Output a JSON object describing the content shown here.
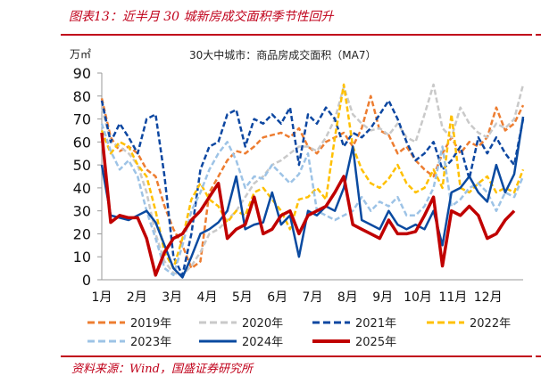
{
  "header": {
    "title": "图表13：近半月 30 城新房成交面积季节性回升"
  },
  "footer": {
    "source": "资料来源：Wind，国盛证券研究所"
  },
  "chart_data": {
    "type": "line",
    "title": "30大中城市：商品房成交面积（MA7）",
    "ylabel": "万㎡",
    "xlabel": "",
    "ylim": [
      0,
      90
    ],
    "yticks": [
      0,
      10,
      20,
      30,
      40,
      50,
      60,
      70,
      80,
      90
    ],
    "categories": [
      "1月",
      "2月",
      "3月",
      "4月",
      "5月",
      "6月",
      "7月",
      "8月",
      "9月",
      "10月",
      "11月",
      "12月"
    ],
    "grid": false,
    "legend_position": "bottom",
    "x_note": "values sampled at ~48 evenly spaced points across the year (≈ weekly)",
    "series": [
      {
        "name": "2019年",
        "color": "#ED7D31",
        "style": "dashed",
        "width": 2.5,
        "values": [
          79,
          62,
          56,
          58,
          55,
          48,
          45,
          32,
          22,
          15,
          5,
          8,
          38,
          45,
          52,
          56,
          55,
          58,
          62,
          63,
          64,
          62,
          66,
          58,
          55,
          60,
          62,
          64,
          58,
          66,
          80,
          65,
          63,
          55,
          58,
          52,
          48,
          45,
          55,
          62,
          55,
          60,
          58,
          62,
          75,
          65,
          68,
          76
        ]
      },
      {
        "name": "2020年",
        "color": "#C9C9C9",
        "style": "dashed",
        "width": 2.5,
        "values": [
          75,
          60,
          58,
          55,
          50,
          38,
          20,
          8,
          3,
          2,
          6,
          12,
          20,
          22,
          26,
          30,
          36,
          42,
          45,
          50,
          52,
          55,
          58,
          58,
          56,
          62,
          70,
          84,
          72,
          68,
          65,
          66,
          63,
          68,
          62,
          60,
          72,
          85,
          66,
          62,
          75,
          68,
          64,
          62,
          68,
          66,
          70,
          85
        ]
      },
      {
        "name": "2021年",
        "color": "#0D47A1",
        "style": "dashed",
        "width": 2.5,
        "values": [
          78,
          60,
          68,
          62,
          55,
          70,
          72,
          45,
          10,
          2,
          20,
          48,
          58,
          60,
          72,
          74,
          58,
          70,
          68,
          72,
          68,
          75,
          50,
          72,
          68,
          75,
          70,
          58,
          64,
          62,
          66,
          72,
          78,
          70,
          60,
          52,
          55,
          60,
          48,
          52,
          58,
          44,
          62,
          55,
          62,
          55,
          50,
          70
        ]
      },
      {
        "name": "2022年",
        "color": "#FFC000",
        "style": "dashed",
        "width": 2.5,
        "values": [
          65,
          55,
          60,
          58,
          50,
          45,
          30,
          12,
          5,
          18,
          35,
          42,
          35,
          32,
          25,
          30,
          28,
          38,
          40,
          35,
          30,
          22,
          35,
          36,
          40,
          35,
          62,
          85,
          58,
          48,
          42,
          40,
          44,
          50,
          42,
          38,
          40,
          48,
          40,
          72,
          40,
          38,
          42,
          45,
          38,
          40,
          38,
          48
        ]
      },
      {
        "name": "2023年",
        "color": "#9DC3E6",
        "style": "dashed",
        "width": 2.5,
        "values": [
          68,
          56,
          48,
          52,
          45,
          30,
          18,
          5,
          2,
          15,
          30,
          38,
          48,
          55,
          60,
          52,
          40,
          45,
          44,
          50,
          46,
          42,
          46,
          55,
          30,
          28,
          26,
          28,
          30,
          36,
          30,
          34,
          32,
          36,
          28,
          28,
          32,
          40,
          58,
          32,
          35,
          40,
          42,
          38,
          30,
          38,
          36,
          45
        ]
      },
      {
        "name": "2024年",
        "color": "#0A4AA0",
        "style": "solid",
        "width": 2.5,
        "values": [
          50,
          28,
          27,
          26,
          28,
          30,
          25,
          15,
          5,
          1,
          10,
          20,
          22,
          25,
          30,
          45,
          22,
          24,
          25,
          38,
          24,
          28,
          10,
          30,
          28,
          32,
          30,
          40,
          58,
          26,
          24,
          22,
          30,
          24,
          22,
          24,
          22,
          30,
          15,
          38,
          40,
          45,
          38,
          34,
          50,
          38,
          46,
          71
        ]
      },
      {
        "name": "2025年",
        "color": "#C00000",
        "style": "solid",
        "width": 3.5,
        "values": [
          64,
          25,
          28,
          27,
          27,
          18,
          2,
          12,
          18,
          20,
          26,
          30,
          36,
          42,
          18,
          22,
          24,
          36,
          20,
          22,
          28,
          30,
          20,
          28,
          30,
          32,
          38,
          45,
          24,
          22,
          20,
          18,
          26,
          20,
          20,
          21,
          28,
          36,
          6,
          30,
          28,
          32,
          28,
          18,
          20,
          26,
          30,
          null
        ]
      }
    ]
  },
  "legend": [
    {
      "label": "2019年",
      "color": "#ED7D31",
      "style": "dashed"
    },
    {
      "label": "2020年",
      "color": "#C9C9C9",
      "style": "dashed"
    },
    {
      "label": "2021年",
      "color": "#0D47A1",
      "style": "dashed"
    },
    {
      "label": "2022年",
      "color": "#FFC000",
      "style": "dashed"
    },
    {
      "label": "2023年",
      "color": "#9DC3E6",
      "style": "dashed"
    },
    {
      "label": "2024年",
      "color": "#0A4AA0",
      "style": "solid"
    },
    {
      "label": "2025年",
      "color": "#C00000",
      "style": "solid"
    }
  ]
}
